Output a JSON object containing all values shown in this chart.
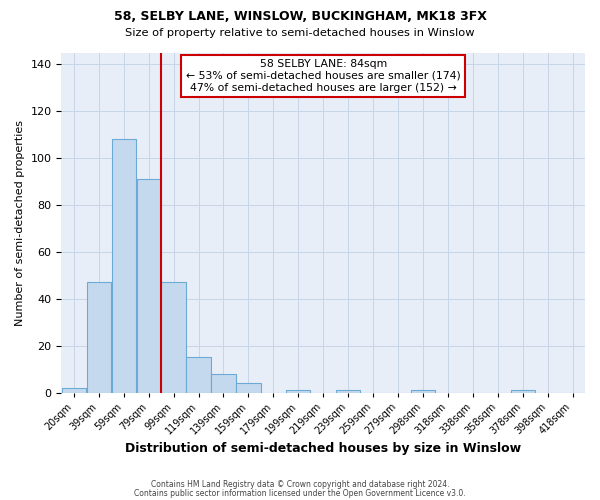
{
  "title1": "58, SELBY LANE, WINSLOW, BUCKINGHAM, MK18 3FX",
  "title2": "Size of property relative to semi-detached houses in Winslow",
  "xlabel": "Distribution of semi-detached houses by size in Winslow",
  "ylabel": "Number of semi-detached properties",
  "annotation_title": "58 SELBY LANE: 84sqm",
  "annotation_line1": "← 53% of semi-detached houses are smaller (174)",
  "annotation_line2": "47% of semi-detached houses are larger (152) →",
  "footer1": "Contains HM Land Registry data © Crown copyright and database right 2024.",
  "footer2": "Contains public sector information licensed under the Open Government Licence v3.0.",
  "bin_labels": [
    "20sqm",
    "39sqm",
    "59sqm",
    "79sqm",
    "99sqm",
    "119sqm",
    "139sqm",
    "159sqm",
    "179sqm",
    "199sqm",
    "219sqm",
    "239sqm",
    "259sqm",
    "279sqm",
    "298sqm",
    "318sqm",
    "338sqm",
    "358sqm",
    "378sqm",
    "398sqm",
    "418sqm"
  ],
  "values": [
    2,
    47,
    108,
    91,
    47,
    15,
    8,
    4,
    0,
    1,
    0,
    1,
    0,
    0,
    1,
    0,
    0,
    0,
    1,
    0,
    0
  ],
  "bar_color": "#c5d9ee",
  "bar_edge_color": "#6aaad4",
  "red_line_color": "#cc0000",
  "ylim": [
    0,
    145
  ],
  "yticks": [
    0,
    20,
    40,
    60,
    80,
    100,
    120,
    140
  ],
  "annotation_box_color": "#ffffff",
  "annotation_box_edge": "#cc0000",
  "grid_color": "#c8d4e8",
  "background_color": "#e8eef8"
}
